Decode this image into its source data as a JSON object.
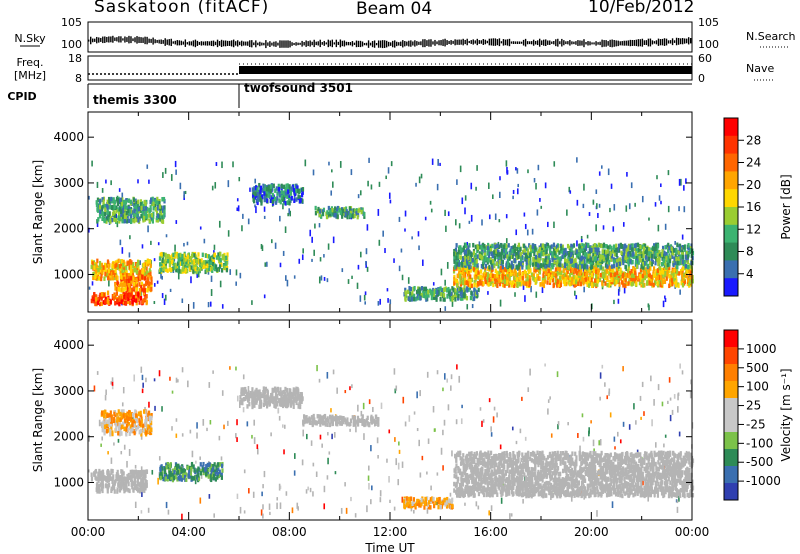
{
  "header": {
    "station": "Saskatoon (fitACF)",
    "beam": "Beam 04",
    "date": "10/Feb/2012"
  },
  "colors": {
    "scale": [
      "#1a1aff",
      "#3a6fb0",
      "#2e8b57",
      "#3cb371",
      "#9acd32",
      "#ffd700",
      "#ffa500",
      "#ff6600",
      "#ff3300",
      "#ff0000"
    ],
    "velocity_scale": [
      "#2f3fb0",
      "#3a6fb0",
      "#2e8b57",
      "#7cc24a",
      "#c8c8c8",
      "#c8c8c8",
      "#ffa500",
      "#ff7f00",
      "#ff4500",
      "#ff0000"
    ],
    "ground_scatter": "#b4b4b4"
  },
  "chart_data": [
    {
      "type": "line",
      "panel": "nsky-nsearch",
      "labels_left": [
        "N.Sky"
      ],
      "labels_right": [
        "N.Search"
      ],
      "yticks_left": [
        "10^5",
        "10^0"
      ],
      "yticks_right": [
        "10^5",
        "10^0"
      ],
      "x": [
        0,
        1,
        2,
        3,
        4,
        5,
        6,
        7,
        8,
        9,
        10,
        11,
        12,
        13,
        14,
        15,
        16,
        17,
        18,
        19,
        20,
        21,
        22,
        23,
        24
      ],
      "series": [
        {
          "name": "N.Sky",
          "values": [
            1.2,
            1.4,
            1.3,
            1.0,
            0.8,
            0.8,
            0.8,
            0.7,
            0.7,
            0.8,
            0.8,
            0.7,
            0.7,
            0.8,
            0.9,
            1.0,
            1.0,
            0.9,
            0.9,
            0.9,
            0.8,
            0.8,
            0.9,
            1.0,
            1.2
          ]
        }
      ]
    },
    {
      "type": "line",
      "panel": "freq-nave",
      "labels_left": [
        "Freq.",
        "[MHz]"
      ],
      "labels_right": [
        "Nave"
      ],
      "yticks_left": [
        "18",
        "8"
      ],
      "yticks_right": [
        "60",
        "0"
      ],
      "series": [
        {
          "name": "Freq.",
          "x": [
            0,
            6
          ],
          "values": [
            10.5,
            10.5
          ]
        },
        {
          "name": "Nave",
          "x": [
            6,
            24
          ],
          "values": [
            25,
            25
          ]
        }
      ]
    },
    {
      "type": "table",
      "panel": "cpid",
      "label": "CPID",
      "segments": [
        {
          "name": "themis 3300",
          "start": 0,
          "end": 6
        },
        {
          "name": "twofsound 3501",
          "start": 6,
          "end": 24
        }
      ]
    },
    {
      "type": "heatmap",
      "panel": "power",
      "ylabel": "Slant Range [km]",
      "yticks": [
        "1000",
        "2000",
        "3000",
        "4000"
      ],
      "ylim": [
        180,
        4550
      ],
      "colorbar_label": "Power [dB]",
      "colorbar_ticks": [
        "4",
        "8",
        "12",
        "16",
        "20",
        "24",
        "28"
      ],
      "xlim": [
        0,
        24
      ],
      "regions": [
        {
          "t0": 0.1,
          "t1": 2.3,
          "r0": 400,
          "r1": 650,
          "level": 8
        },
        {
          "t0": 0.1,
          "t1": 2.5,
          "r0": 950,
          "r1": 1350,
          "level": 6
        },
        {
          "t0": 1.0,
          "t1": 2.5,
          "r0": 700,
          "r1": 1000,
          "level": 7
        },
        {
          "t0": 0.3,
          "t1": 3.0,
          "r0": 2200,
          "r1": 2700,
          "level": 3
        },
        {
          "t0": 2.8,
          "t1": 5.5,
          "r0": 1100,
          "r1": 1500,
          "level": 4
        },
        {
          "t0": 6.5,
          "t1": 8.5,
          "r0": 2600,
          "r1": 3000,
          "level": 2
        },
        {
          "t0": 9.0,
          "t1": 11.0,
          "r0": 2300,
          "r1": 2500,
          "level": 3
        },
        {
          "t0": 12.5,
          "t1": 15.5,
          "r0": 500,
          "r1": 750,
          "level": 3
        },
        {
          "t0": 14.5,
          "t1": 24.0,
          "r0": 800,
          "r1": 1200,
          "level": 6
        },
        {
          "t0": 14.5,
          "t1": 24.0,
          "r0": 1200,
          "r1": 1700,
          "level": 3
        }
      ]
    },
    {
      "type": "heatmap",
      "panel": "velocity",
      "ylabel": "Slant Range [km]",
      "yticks": [
        "1000",
        "2000",
        "3000",
        "4000"
      ],
      "ylim": [
        180,
        4550
      ],
      "xlabel": "Time UT",
      "xticks": [
        "00:00",
        "04:00",
        "08:00",
        "12:00",
        "16:00",
        "20:00",
        "00:00"
      ],
      "xlim": [
        0,
        24
      ],
      "colorbar_label": "Velocity [m s⁻¹]",
      "colorbar_ticks": [
        "1000",
        "500",
        "100",
        "25",
        "-25",
        "-100",
        "-500",
        "-1000"
      ],
      "regions": [
        {
          "t0": 0.1,
          "t1": 2.3,
          "r0": 1100,
          "r1": 1300,
          "level": -1
        },
        {
          "t0": 0.3,
          "t1": 2.3,
          "r0": 850,
          "r1": 1100,
          "level": -1
        },
        {
          "t0": 0.5,
          "t1": 2.5,
          "r0": 2100,
          "r1": 2600,
          "level": 6
        },
        {
          "t0": 2.8,
          "t1": 5.3,
          "r0": 1100,
          "r1": 1450,
          "level": 2
        },
        {
          "t0": 6.0,
          "t1": 8.5,
          "r0": 2700,
          "r1": 3100,
          "level": -1
        },
        {
          "t0": 8.5,
          "t1": 11.5,
          "r0": 2300,
          "r1": 2500,
          "level": -1
        },
        {
          "t0": 12.5,
          "t1": 14.5,
          "r0": 500,
          "r1": 700,
          "level": 6
        },
        {
          "t0": 14.5,
          "t1": 24.0,
          "r0": 750,
          "r1": 1700,
          "level": -1
        }
      ]
    }
  ]
}
